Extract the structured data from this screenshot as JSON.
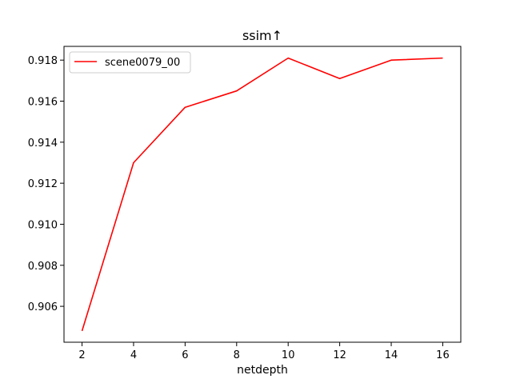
{
  "chart_data": {
    "type": "line",
    "title": "ssim↑",
    "xlabel": "netdepth",
    "ylabel": "",
    "x": [
      2,
      4,
      6,
      8,
      10,
      12,
      14,
      16
    ],
    "series": [
      {
        "name": "scene0079_00",
        "color": "#ff0000",
        "values": [
          0.9048,
          0.913,
          0.9157,
          0.9165,
          0.9181,
          0.9171,
          0.918,
          0.9181
        ]
      }
    ],
    "xlim": [
      1.3,
      16.7
    ],
    "ylim": [
      0.90425,
      0.91867
    ],
    "xticks": [
      2,
      4,
      6,
      8,
      10,
      12,
      14,
      16
    ],
    "xtick_labels": [
      "2",
      "4",
      "6",
      "8",
      "10",
      "12",
      "14",
      "16"
    ],
    "yticks": [
      0.906,
      0.908,
      0.91,
      0.912,
      0.914,
      0.916,
      0.918
    ],
    "ytick_labels": [
      "0.906",
      "0.908",
      "0.910",
      "0.912",
      "0.914",
      "0.916",
      "0.918"
    ],
    "grid": false,
    "legend": "top-left"
  }
}
